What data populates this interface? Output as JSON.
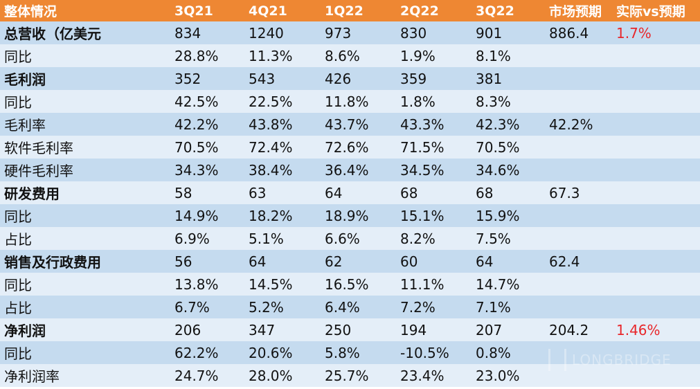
{
  "header": [
    "整体情况",
    "3Q21",
    "4Q21",
    "1Q22",
    "2Q22",
    "3Q22",
    "市场预期",
    "实际vs预期"
  ],
  "rows": [
    {
      "label": "总营收（亿美元",
      "bold": true,
      "cells": [
        "834",
        "1240",
        "973",
        "830",
        "901",
        "886.4",
        "1.7%"
      ]
    },
    {
      "label": "同比",
      "bold": false,
      "cells": [
        "28.8%",
        "11.3%",
        "8.6%",
        "1.9%",
        "8.1%",
        "",
        ""
      ]
    },
    {
      "label": "毛利润",
      "bold": true,
      "cells": [
        "352",
        "543",
        "426",
        "359",
        "381",
        "",
        ""
      ]
    },
    {
      "label": "同比",
      "bold": false,
      "cells": [
        "42.5%",
        "22.5%",
        "11.8%",
        "1.8%",
        "8.3%",
        "",
        ""
      ]
    },
    {
      "label": "毛利率",
      "bold": false,
      "cells": [
        "42.2%",
        "43.8%",
        "43.7%",
        "43.3%",
        "42.3%",
        "42.2%",
        ""
      ]
    },
    {
      "label": "软件毛利率",
      "bold": false,
      "cells": [
        "70.5%",
        "72.4%",
        "72.6%",
        "71.5%",
        "70.5%",
        "",
        ""
      ]
    },
    {
      "label": "硬件毛利率",
      "bold": false,
      "cells": [
        "34.3%",
        "38.4%",
        "36.4%",
        "34.5%",
        "34.6%",
        "",
        ""
      ]
    },
    {
      "label": "研发费用",
      "bold": true,
      "cells": [
        "58",
        "63",
        "64",
        "68",
        "68",
        "67.3",
        ""
      ]
    },
    {
      "label": "同比",
      "bold": false,
      "cells": [
        "14.9%",
        "18.2%",
        "18.9%",
        "15.1%",
        "15.9%",
        "",
        ""
      ]
    },
    {
      "label": "占比",
      "bold": false,
      "cells": [
        "6.9%",
        "5.1%",
        "6.6%",
        "8.2%",
        "7.5%",
        "",
        ""
      ]
    },
    {
      "label": "销售及行政费用",
      "bold": true,
      "cells": [
        "56",
        "64",
        "62",
        "60",
        "64",
        "62.4",
        ""
      ]
    },
    {
      "label": "同比",
      "bold": false,
      "cells": [
        "13.8%",
        "14.5%",
        "16.5%",
        "11.1%",
        "14.7%",
        "",
        ""
      ]
    },
    {
      "label": "占比",
      "bold": false,
      "cells": [
        "6.7%",
        "5.2%",
        "6.4%",
        "7.2%",
        "7.1%",
        "",
        ""
      ]
    },
    {
      "label": "净利润",
      "bold": true,
      "cells": [
        "206",
        "347",
        "250",
        "194",
        "207",
        "204.2",
        "1.46%"
      ]
    },
    {
      "label": "同比",
      "bold": false,
      "cells": [
        "62.2%",
        "20.6%",
        "5.8%",
        "-10.5%",
        "0.8%",
        "",
        ""
      ]
    },
    {
      "label": "净利润率",
      "bold": false,
      "cells": [
        "24.7%",
        "28.0%",
        "25.7%",
        "23.4%",
        "23.0%",
        "",
        ""
      ]
    }
  ],
  "colors": {
    "header_bg": "#ee8733",
    "row_dark": "#c5dbef",
    "row_light": "#e4eef8",
    "highlight_text": "#e8262a"
  },
  "watermark": "LONGBRIDGE"
}
